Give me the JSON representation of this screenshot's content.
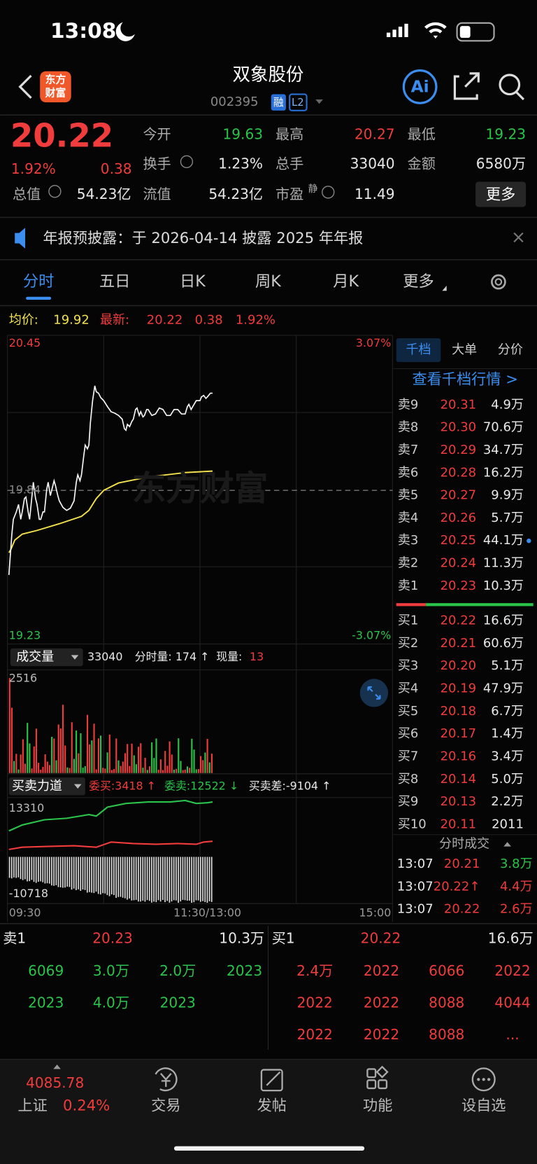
{
  "status_bar": {
    "time": "13:08"
  },
  "header": {
    "logo_top": "东方",
    "logo_bottom": "财富",
    "name": "双象股份",
    "code": "002395",
    "margin_badge": "融",
    "level_badge": "L2",
    "ai_button": "Ai"
  },
  "quote": {
    "price": "20.22",
    "change_pct": "1.92%",
    "change": "0.38",
    "stats": [
      {
        "label": "今开",
        "value": "19.63"
      },
      {
        "label": "最高",
        "value": "20.27"
      },
      {
        "label": "最低",
        "value": "19.23"
      },
      {
        "label": "换手",
        "value": "1.23%"
      },
      {
        "label": "总手",
        "value": "33040"
      },
      {
        "label": "金额",
        "value": "6580万"
      },
      {
        "label": "总值",
        "value": "54.23亿"
      },
      {
        "label": "流值",
        "value": "54.23亿"
      },
      {
        "label": "市盈",
        "superscript": "静",
        "value": "11.49"
      }
    ],
    "more_button": "更多"
  },
  "notice": {
    "text": "年报预披露：于 2026-04-14 披露 2025 年年报"
  },
  "tabs": [
    "分时",
    "五日",
    "日K",
    "周K",
    "月K",
    "更多"
  ],
  "intraday": {
    "avg_label": "均价:",
    "avg_value": "19.92",
    "latest_label": "最新:",
    "latest_value": "20.22",
    "latest_change": "0.38",
    "latest_pct": "1.92%",
    "y_top": "20.45",
    "pct_top": "3.07%",
    "y_mid": "19.84",
    "y_bottom": "19.23",
    "pct_bottom": "-3.07%",
    "watermark": "东方财富"
  },
  "volume": {
    "selector": "成交量",
    "total": "33040",
    "minute_volume": "分时量: 174 ↑",
    "current_label": "现量:",
    "current_value": "13",
    "max": "2516"
  },
  "power": {
    "selector": "买卖力道",
    "bid": "委买:3418 ↑",
    "ask": "委卖:12522 ↓",
    "diff": "买卖差:-9104 ↑",
    "max": "13310",
    "min": "-10718"
  },
  "time_axis": [
    "09:30",
    "11:30/13:00",
    "15:00"
  ],
  "order_book": {
    "tabs": [
      "千档",
      "大单",
      "分价"
    ],
    "link": "查看千档行情 >",
    "asks": [
      [
        "卖9",
        "20.31",
        "4.9万"
      ],
      [
        "卖8",
        "20.30",
        "70.6万"
      ],
      [
        "卖7",
        "20.29",
        "34.7万"
      ],
      [
        "卖6",
        "20.28",
        "16.2万"
      ],
      [
        "卖5",
        "20.27",
        "9.9万"
      ],
      [
        "卖4",
        "20.26",
        "5.7万"
      ],
      [
        "卖3",
        "20.25",
        "44.1万"
      ],
      [
        "卖2",
        "20.24",
        "11.3万"
      ],
      [
        "卖1",
        "20.23",
        "10.3万"
      ]
    ],
    "bids": [
      [
        "买1",
        "20.22",
        "16.6万"
      ],
      [
        "买2",
        "20.21",
        "60.6万"
      ],
      [
        "买3",
        "20.20",
        "5.1万"
      ],
      [
        "买4",
        "20.19",
        "47.9万"
      ],
      [
        "买5",
        "20.18",
        "6.7万"
      ],
      [
        "买6",
        "20.17",
        "1.4万"
      ],
      [
        "买7",
        "20.16",
        "3.4万"
      ],
      [
        "买8",
        "20.14",
        "5.0万"
      ],
      [
        "买9",
        "20.13",
        "2.2万"
      ],
      [
        "买10",
        "20.11",
        "2011"
      ]
    ]
  },
  "trades": {
    "title": "分时成交",
    "rows": [
      [
        "13:07",
        "20.21",
        "3.8万"
      ],
      [
        "13:07",
        "20.22↑",
        "4.4万"
      ],
      [
        "13:07",
        "20.22",
        "2.6万"
      ]
    ]
  },
  "level1": {
    "ask": [
      "卖1",
      "20.23",
      "10.3万"
    ],
    "bid": [
      "买1",
      "20.22",
      "16.6万"
    ],
    "ask_queue": [
      "6069",
      "3.0万",
      "2.0万",
      "2023",
      "2023",
      "4.0万",
      "2023"
    ],
    "bid_queue": [
      "2.4万",
      "2022",
      "6066",
      "2022",
      "2022",
      "2022",
      "8088",
      "4044",
      "2022",
      "2022",
      "8088",
      "..."
    ]
  },
  "bottom_nav": {
    "index_value": "4085.78",
    "index_name": "上证",
    "index_pct": "0.24%",
    "items": [
      "交易",
      "发帖",
      "功能",
      "设自选"
    ]
  }
}
